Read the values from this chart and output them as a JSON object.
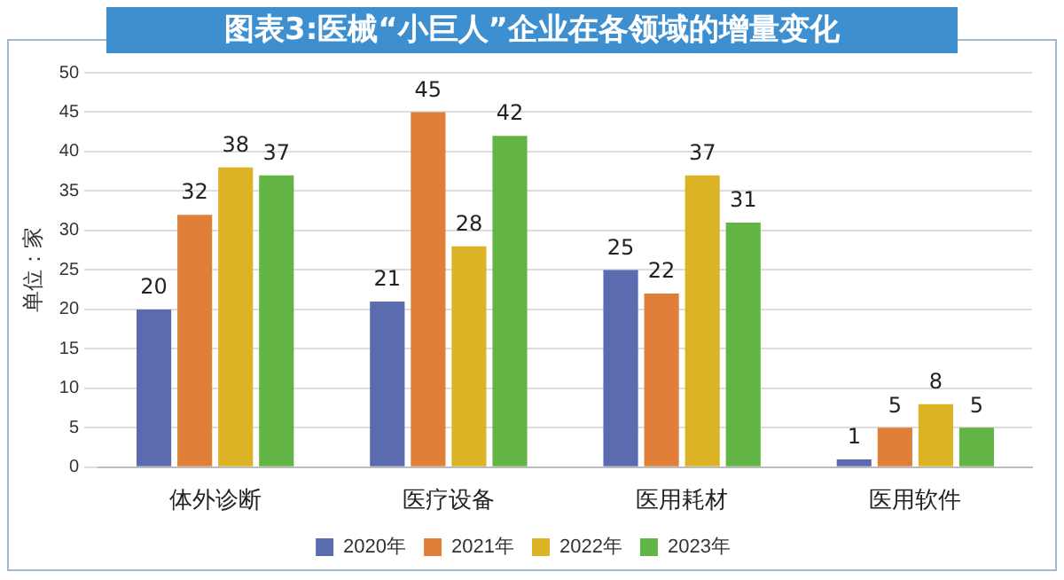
{
  "chart_data": {
    "type": "bar",
    "title": "图表3:医械“小巨人”企业在各领域的增量变化",
    "ylabel": "单位：家",
    "categories": [
      "体外诊断",
      "医疗设备",
      "医用耗材",
      "医用软件"
    ],
    "series": [
      {
        "name": "2020年",
        "color": "#5b6bb0",
        "values": [
          20,
          21,
          25,
          1
        ]
      },
      {
        "name": "2021年",
        "color": "#e07f3a",
        "values": [
          32,
          45,
          22,
          5
        ]
      },
      {
        "name": "2022年",
        "color": "#dcb325",
        "values": [
          38,
          28,
          37,
          8
        ]
      },
      {
        "name": "2023年",
        "color": "#62b545",
        "values": [
          37,
          42,
          31,
          5
        ]
      }
    ],
    "ylim": [
      0,
      50
    ],
    "yticks": [
      0,
      5,
      10,
      15,
      20,
      25,
      30,
      35,
      40,
      45,
      50
    ],
    "grid": "y",
    "legend": "bottom",
    "data_labels": true
  }
}
